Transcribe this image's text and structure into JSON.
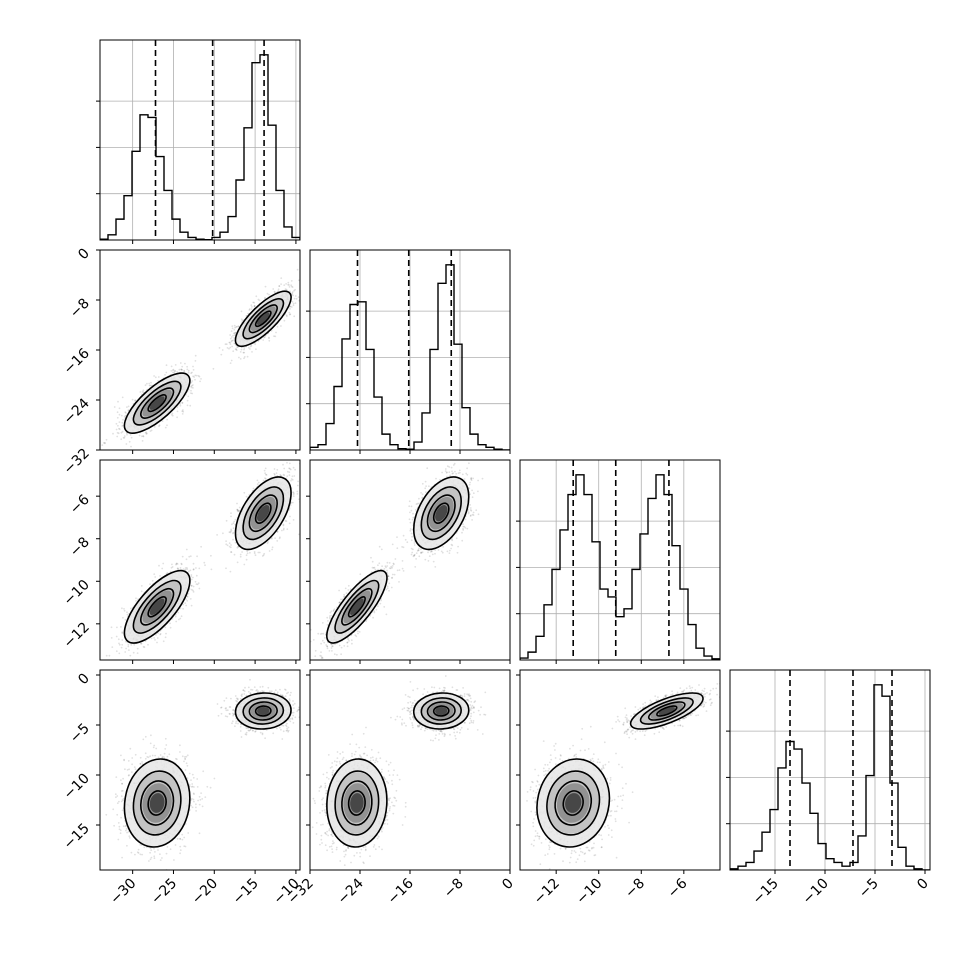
{
  "chart_data": {
    "type": "corner",
    "title": "",
    "dimensions": 4,
    "colors": {
      "line": "#000000",
      "grid": "#b0b0b0",
      "density": "#000000"
    },
    "grid": true,
    "axes": [
      {
        "range": [
          -34,
          -9.5
        ],
        "ticks": [
          -30,
          -25,
          -20,
          -15,
          -10
        ],
        "tick_labels": [
          "−30",
          "−25",
          "−20",
          "−15",
          "−10"
        ],
        "quantiles": [
          -27.2,
          -20.2,
          -13.9
        ]
      },
      {
        "range": [
          -32,
          0
        ],
        "ticks": [
          -32,
          -24,
          -16,
          -8,
          0
        ],
        "tick_labels": [
          "−32",
          "−24",
          "−16",
          "−8",
          "0"
        ],
        "quantiles": [
          -24.4,
          -16.2,
          -9.4
        ]
      },
      {
        "range": [
          -13.7,
          -4.3
        ],
        "ticks": [
          -12,
          -10,
          -8,
          -6
        ],
        "tick_labels": [
          "−12",
          "−10",
          "−8",
          "−6"
        ],
        "quantiles": [
          -11.2,
          -9.2,
          -6.7
        ]
      },
      {
        "range": [
          -19.5,
          0.5
        ],
        "ticks": [
          -15,
          -10,
          -5,
          0
        ],
        "tick_labels": [
          "−15",
          "−10",
          "−5",
          "0"
        ],
        "quantiles": [
          -13.5,
          -7.2,
          -3.3
        ]
      }
    ],
    "histograms": [
      {
        "edges": [
          -34.0,
          -33.02,
          -32.04,
          -31.06,
          -30.08,
          -29.1,
          -28.12,
          -27.14,
          -26.16,
          -25.18,
          -24.2,
          -23.22,
          -22.24,
          -21.26,
          -20.28,
          -19.3,
          -18.32,
          -17.34,
          -16.36,
          -15.38,
          -14.4,
          -13.42,
          -12.44,
          -11.46,
          -10.48,
          -9.5
        ],
        "counts": [
          0.3,
          2,
          8,
          17,
          34,
          48,
          47,
          32,
          19,
          8,
          3,
          1,
          0.3,
          0.1,
          1,
          3,
          9,
          23,
          43,
          68,
          71,
          44,
          19,
          5,
          1
        ]
      },
      {
        "edges": [
          -32.0,
          -30.72,
          -29.44,
          -28.16,
          -26.88,
          -25.6,
          -24.32,
          -23.04,
          -21.76,
          -20.48,
          -19.2,
          -17.92,
          -16.64,
          -15.36,
          -14.08,
          -12.8,
          -11.52,
          -10.24,
          -8.96,
          -7.68,
          -6.4,
          -5.12,
          -3.84,
          -2.56,
          -1.28,
          0
        ],
        "counts": [
          1,
          2,
          10,
          24,
          42,
          55,
          56,
          38,
          20,
          6,
          2,
          0.5,
          0.3,
          3,
          14,
          38,
          63,
          70,
          40,
          16,
          6,
          2,
          1,
          0.3,
          0
        ]
      },
      {
        "edges": [
          -13.7,
          -13.324,
          -12.948,
          -12.572,
          -12.196,
          -11.82,
          -11.444,
          -11.068,
          -10.692,
          -10.316,
          -9.94,
          -9.564,
          -9.188,
          -8.812,
          -8.436,
          -8.06,
          -7.684,
          -7.308,
          -6.932,
          -6.556,
          -6.18,
          -5.804,
          -5.428,
          -5.052,
          -4.676,
          -4.3
        ],
        "counts": [
          0.5,
          2,
          6,
          14,
          23,
          33,
          42,
          47,
          42,
          30,
          18,
          16,
          11,
          13,
          23,
          32,
          41,
          47,
          42,
          29,
          18,
          9,
          3,
          1,
          0.3
        ]
      },
      {
        "edges": [
          -19.5,
          -18.7,
          -17.9,
          -17.1,
          -16.3,
          -15.5,
          -14.7,
          -13.9,
          -13.1,
          -12.3,
          -11.5,
          -10.7,
          -9.9,
          -9.1,
          -8.3,
          -7.5,
          -6.7,
          -5.9,
          -5.1,
          -4.3,
          -3.5,
          -2.7,
          -1.9,
          -1.1,
          -0.3,
          0.5
        ],
        "counts": [
          0.3,
          1,
          2,
          5,
          10,
          16,
          27,
          34,
          32,
          23,
          15,
          7,
          3,
          2,
          1,
          2,
          9,
          25,
          49,
          46,
          23,
          6,
          1,
          0.3,
          0
        ]
      }
    ],
    "modes": [
      {
        "name": "",
        "center": [
          -27.0,
          -24.5,
          -11.2,
          -12.8
        ],
        "sd": [
          2.0,
          2.4,
          0.85,
          2.2
        ]
      },
      {
        "name": "",
        "center": [
          -14.0,
          -11.0,
          -6.8,
          -3.6
        ],
        "sd": [
          1.7,
          2.2,
          0.85,
          0.9
        ]
      }
    ],
    "correlations": [
      {
        "pair": [
          0,
          1
        ],
        "rho": [
          0.75,
          0.78
        ]
      },
      {
        "pair": [
          0,
          2
        ],
        "rho": [
          0.72,
          0.55
        ]
      },
      {
        "pair": [
          0,
          3
        ],
        "rho": [
          0.1,
          0.05
        ]
      },
      {
        "pair": [
          1,
          2
        ],
        "rho": [
          0.8,
          0.45
        ]
      },
      {
        "pair": [
          1,
          3
        ],
        "rho": [
          0.05,
          0.05
        ]
      },
      {
        "pair": [
          2,
          3
        ],
        "rho": [
          0.1,
          0.7
        ]
      }
    ]
  }
}
